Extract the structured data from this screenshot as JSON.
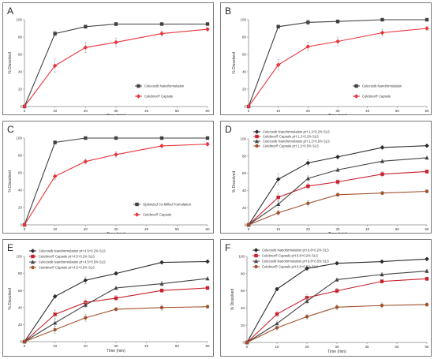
{
  "panels": [
    {
      "panel_label": "A",
      "chart_data": {
        "type": "line",
        "x": [
          0,
          10,
          20,
          30,
          45,
          60
        ],
        "xlabel": "Time (min)",
        "ylabel": "% Dissolved",
        "xlim": [
          0,
          60
        ],
        "ylim": [
          0,
          100
        ],
        "xticks": [
          0,
          10,
          20,
          30,
          40,
          50,
          60
        ],
        "yticks": [
          0,
          20,
          40,
          60,
          80,
          100
        ],
        "grid": false,
        "legend_position": "bottom-right",
        "series": [
          {
            "name": "Celecoxib Nanoformulation",
            "color": "#404040",
            "marker": "square",
            "values": [
              0,
              84,
              92,
              95,
              95,
              95
            ],
            "errors": [
              0,
              3,
              2,
              2,
              1,
              1
            ]
          },
          {
            "name": "Celebrex® Capsule",
            "color": "#e8343b",
            "marker": "diamond",
            "values": [
              0,
              47,
              68,
              74,
              84,
              89
            ],
            "errors": [
              0,
              8,
              6,
              5,
              3,
              2
            ]
          }
        ]
      }
    },
    {
      "panel_label": "B",
      "chart_data": {
        "type": "line",
        "x": [
          0,
          10,
          20,
          30,
          45,
          60
        ],
        "xlabel": "Time (min)",
        "ylabel": "% Dissolved",
        "xlim": [
          0,
          60
        ],
        "ylim": [
          0,
          100
        ],
        "xticks": [
          0,
          10,
          20,
          30,
          40,
          50,
          60
        ],
        "yticks": [
          0,
          20,
          40,
          60,
          80,
          100
        ],
        "grid": false,
        "legend_position": "bottom-right",
        "series": [
          {
            "name": "Celecoxib Nanoformulation",
            "color": "#404040",
            "marker": "square",
            "values": [
              0,
              92,
              97,
              98,
              100,
              100
            ],
            "errors": [
              0,
              2,
              3,
              2,
              1,
              1
            ]
          },
          {
            "name": "Celebrex® Capsule",
            "color": "#e8343b",
            "marker": "diamond",
            "values": [
              0,
              48,
              69,
              75,
              85,
              90
            ],
            "errors": [
              0,
              6,
              5,
              5,
              4,
              2
            ]
          }
        ]
      }
    },
    {
      "panel_label": "C",
      "chart_data": {
        "type": "line",
        "x": [
          0,
          10,
          20,
          30,
          45,
          60
        ],
        "xlabel": "Time (min)",
        "ylabel": "% Dissolved",
        "xlim": [
          0,
          60
        ],
        "ylim": [
          0,
          100
        ],
        "xticks": [
          0,
          10,
          20,
          30,
          40,
          50,
          60
        ],
        "yticks": [
          0,
          20,
          40,
          60,
          80,
          100
        ],
        "grid": false,
        "legend_position": "bottom-right",
        "series": [
          {
            "name": "Optimized Co-Milled Formulation",
            "color": "#404040",
            "marker": "square",
            "values": [
              0,
              95,
              100,
              100,
              100,
              100
            ],
            "errors": [
              0,
              2,
              1,
              1,
              1,
              1
            ]
          },
          {
            "name": "Celebrex® Capsule",
            "color": "#e8343b",
            "marker": "diamond",
            "values": [
              0,
              56,
              73,
              81,
              91,
              93
            ],
            "errors": [
              0,
              4,
              3,
              3,
              2,
              2
            ]
          }
        ]
      }
    },
    {
      "panel_label": "D",
      "chart_data": {
        "type": "line",
        "x": [
          0,
          10,
          20,
          30,
          45,
          60
        ],
        "xlabel": "Time (min)",
        "ylabel": "% Dissolved",
        "xlim": [
          0,
          60
        ],
        "ylim": [
          0,
          100
        ],
        "xticks": [
          0,
          10,
          20,
          30,
          40,
          50,
          60
        ],
        "yticks": [
          0,
          20,
          40,
          60,
          80,
          100
        ],
        "grid": false,
        "legend_position": "top-left",
        "series": [
          {
            "name": "Celecoxib Nanoformulation pH 1.2+0.2% SLS",
            "color": "#2b2b2b",
            "marker": "diamond",
            "values": [
              0,
              53,
              72,
              79,
              90,
              92
            ],
            "errors": [
              0,
              6,
              4,
              2,
              2,
              1
            ]
          },
          {
            "name": "Celebrex® Capsule pH 1.2+0.2% SLS",
            "color": "#c8202c",
            "marker": "square",
            "values": [
              0,
              32,
              45,
              50,
              59,
              62
            ],
            "errors": [
              0,
              5,
              3,
              3,
              3,
              2
            ]
          },
          {
            "name": "Celecoxib Nanoformulation pH 1.2+0.5% SLS",
            "color": "#444444",
            "marker": "triangle",
            "values": [
              0,
              24,
              54,
              64,
              74,
              78
            ],
            "errors": [
              0,
              4,
              3,
              2,
              2,
              2
            ]
          },
          {
            "name": "Celebrex® Capsule pH 1.2+0.5% SLS",
            "color": "#a0522d",
            "marker": "circle",
            "values": [
              0,
              14,
              25,
              35,
              37,
              39
            ],
            "errors": [
              0,
              3,
              3,
              2,
              2,
              2
            ]
          }
        ]
      }
    },
    {
      "panel_label": "E",
      "chart_data": {
        "type": "line",
        "x": [
          0,
          10,
          20,
          30,
          45,
          60
        ],
        "xlabel": "Time (min)",
        "ylabel": "% Dissolved",
        "xlim": [
          0,
          60
        ],
        "ylim": [
          0,
          100
        ],
        "xticks": [
          0,
          10,
          20,
          30,
          40,
          50,
          60
        ],
        "yticks": [
          0,
          20,
          40,
          60,
          80,
          100
        ],
        "grid": false,
        "legend_position": "top-left",
        "series": [
          {
            "name": "Celecoxib Nanoformulation pH 4.5+0.2% SLS",
            "color": "#2b2b2b",
            "marker": "diamond",
            "values": [
              0,
              53,
              72,
              80,
              93,
              94
            ],
            "errors": [
              0,
              2,
              4,
              2,
              1,
              1
            ]
          },
          {
            "name": "Celebrex® Capsule pH 4.5+0.2% SLS",
            "color": "#c8202c",
            "marker": "square",
            "values": [
              0,
              32,
              46,
              51,
              60,
              63
            ],
            "errors": [
              0,
              5,
              4,
              3,
              2,
              2
            ]
          },
          {
            "name": "Celecoxib Nanoformulation pH 4.5+0.5% SLS",
            "color": "#444444",
            "marker": "triangle",
            "values": [
              0,
              22,
              43,
              63,
              68,
              74
            ],
            "errors": [
              0,
              4,
              3,
              2,
              3,
              2
            ]
          },
          {
            "name": "Celebrex® Capsule pH 4.5+0.5% SLS",
            "color": "#a0522d",
            "marker": "circle",
            "values": [
              0,
              14,
              28,
              38,
              40,
              41
            ],
            "errors": [
              0,
              4,
              4,
              2,
              3,
              2
            ]
          }
        ]
      }
    },
    {
      "panel_label": "F",
      "chart_data": {
        "type": "line",
        "x": [
          0,
          10,
          20,
          30,
          45,
          60
        ],
        "xlabel": "Time (min)",
        "ylabel": "% Dissolved",
        "xlim": [
          0,
          60
        ],
        "ylim": [
          0,
          100
        ],
        "xticks": [
          0,
          10,
          20,
          30,
          40,
          50,
          60
        ],
        "yticks": [
          0,
          20,
          40,
          60,
          80,
          100
        ],
        "grid": false,
        "legend_position": "top-left",
        "series": [
          {
            "name": "Celecoxib Nanoformulation pH 6.8+0.2% SLS",
            "color": "#2b2b2b",
            "marker": "diamond",
            "values": [
              0,
              62,
              86,
              92,
              94,
              97
            ],
            "errors": [
              0,
              2,
              2,
              1,
              1,
              1
            ]
          },
          {
            "name": "Celebrex® Capsule pH 6.8+0.2% SLS",
            "color": "#c8202c",
            "marker": "square",
            "values": [
              0,
              33,
              52,
              60,
              71,
              74
            ],
            "errors": [
              0,
              3,
              4,
              3,
              2,
              2
            ]
          },
          {
            "name": "Celecoxib Nanoformulation pH 6.8+0.5% SLS",
            "color": "#444444",
            "marker": "triangle",
            "values": [
              0,
              22,
              48,
              73,
              79,
              83
            ],
            "errors": [
              0,
              3,
              3,
              2,
              2,
              2
            ]
          },
          {
            "name": "Celebrex® Capsule pH 6.8+0.5% SLS",
            "color": "#a0522d",
            "marker": "circle",
            "values": [
              0,
              17,
              30,
              41,
              43,
              44
            ],
            "errors": [
              0,
              3,
              3,
              3,
              3,
              2
            ]
          }
        ]
      }
    }
  ]
}
